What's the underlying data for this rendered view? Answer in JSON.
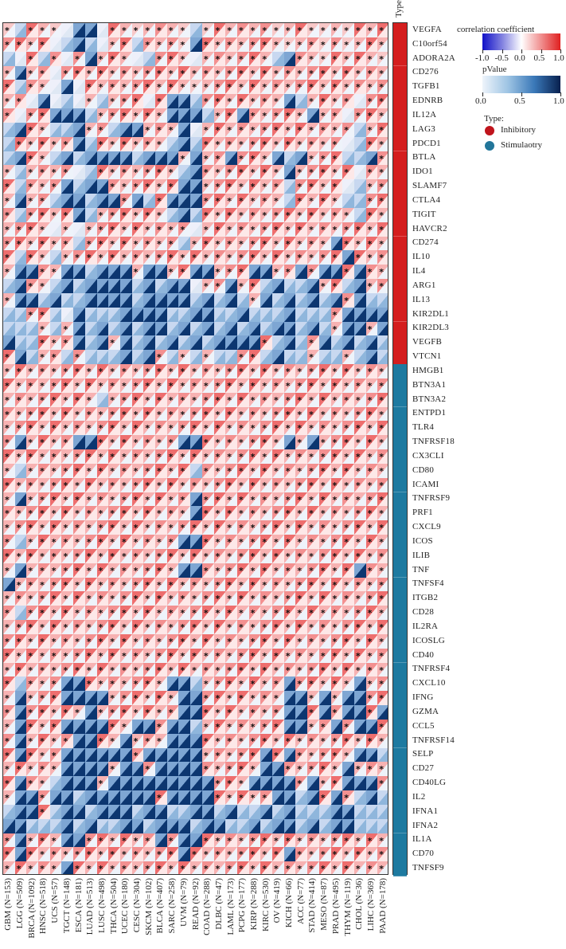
{
  "chart_data": {
    "type": "heatmap",
    "title": "",
    "description": "Correlation of immune checkpoint genes with a target across TCGA cancer types; each cell split into upper-left triangle (correlation coefficient) and lower-right triangle (pValue); asterisk marks significance",
    "columns": [
      "GBM (N=153)",
      "LGG (N=509)",
      "BRCA (N=1092)",
      "HNSC (N=518)",
      "UCS (N=57)",
      "TGCT (N=148)",
      "ESCA (N=181)",
      "LUAD (N=513)",
      "LUSC (N=498)",
      "THCA (N=504)",
      "UCEC (N=180)",
      "CESC (N=304)",
      "SKCM (N=102)",
      "BLCA (N=407)",
      "SARC (N=258)",
      "UVM (N=79)",
      "READ (N=92)",
      "COAD (N=288)",
      "DLBC (N=47)",
      "LAML (N=173)",
      "PCPG (N=177)",
      "KIRP (N=288)",
      "KIRC (N=530)",
      "OV (N=419)",
      "KICH (N=66)",
      "ACC (N=77)",
      "STAD (N=414)",
      "MESO (N=87)",
      "PRAD (N=495)",
      "THYM (N=119)",
      "CHOL (N=36)",
      "LIHC (N=369)",
      "PAAD (N=178)"
    ],
    "rows": [
      {
        "gene": "VEGFA",
        "type": "Inhibitory",
        "cells": "rbRRrwBBwRRrRRRrbrRRRRRrRRrrRrRRR"
      },
      {
        "gene": "C10orf54",
        "type": "Inhibitory",
        "cells": "RRRRwbBbwRRbRRRrBRRRRRRRrRRrRrRRR"
      },
      {
        "gene": "ADORA2A",
        "type": "Inhibitory",
        "cells": "bwRbRwRBRRRwbRRRwRRRRRRbBRRrRRRRr"
      },
      {
        "gene": "CD276",
        "type": "Inhibitory",
        "cells": "RBRRwRRRRRRRRRRRRRRRRRRRRRRRRRRRR"
      },
      {
        "gene": "TGFB1",
        "type": "Inhibitory",
        "cells": "RbRRwBwRRRRRRRRRrRRRRRRRRRRRRRRRR"
      },
      {
        "gene": "EDNRB",
        "type": "Inhibitory",
        "cells": "RRwBwbwRbRRRwRBBbRRRRRRRBbRRRRwRR"
      },
      {
        "gene": "IL12A",
        "type": "Inhibitory",
        "cells": "RwRRBBBbRRRRRRBBBbRRBRRRRRBRRwRRR"
      },
      {
        "gene": "LAG3",
        "type": "Inhibitory",
        "cells": "bBRRbbBRRbBBRRRBwRRRRRRRRRRRRRbRR"
      },
      {
        "gene": "PDCD1",
        "type": "Inhibitory",
        "cells": "bRRRRRBbRRRRRRbBbRRRRRRRRRRRRwbRR"
      },
      {
        "gene": "BTLA",
        "type": "Inhibitory",
        "cells": "bBRRbBbBBBBbBBBRBRRBRRRBbBRRRbbBR"
      },
      {
        "gene": "IDO1",
        "type": "Inhibitory",
        "cells": "RbRRRRwbRRRRRRRbBRRRRRRRBRRRRRwRR"
      },
      {
        "gene": "SLAMF7",
        "type": "Inhibitory",
        "cells": "RbRRRBbBBRRRRRRBBRRRRRRRbRRRRwbRR"
      },
      {
        "gene": "CTLA4",
        "type": "Inhibitory",
        "cells": "RBRRbBBbBBRBbRBBBRRRRRRRbRRRRbbRR"
      },
      {
        "gene": "TIGIT",
        "type": "Inhibitory",
        "cells": "RbRRRRBbRRRRRRbBbRRRRRRRRRRRRRbRR"
      },
      {
        "gene": "HAVCR2",
        "type": "Inhibitory",
        "cells": "RRRRwRwRRRRRRRRRwRRRRRRRRRRRRRRRR"
      },
      {
        "gene": "CD274",
        "type": "Inhibitory",
        "cells": "RRRRRRbRRRRRRRRbRRRRRRRRRRRRBRRRR"
      },
      {
        "gene": "IL10",
        "type": "Inhibitory",
        "cells": "RbRRbRRRRRRRRRRRRRRRRRRRRRRRRBRRR"
      },
      {
        "gene": "IL4",
        "type": "Inhibitory",
        "cells": "RBBRRBBbBBBRBBRRBBRRRBBRRBRBBRBRR"
      },
      {
        "gene": "ARG1",
        "type": "Inhibitory",
        "cells": "bBRRbBbBBBBbBbBBwRRBRRbBbbBRRbBRR"
      },
      {
        "gene": "IL13",
        "type": "Inhibitory",
        "cells": "RBBbBbbBBBBbBBBBbBbBbRBbBbBbBRBbb"
      },
      {
        "gene": "KIR2DL1",
        "type": "Inhibitory",
        "cells": "bbRRbwBbbbBBBBbbBBbbBbbbBbbbRBBBB"
      },
      {
        "gene": "KIR2DL3",
        "type": "Inhibitory",
        "cells": "bbbRbRBbBbBbBBbBbBbBbBbBBbBbRBBRB"
      },
      {
        "gene": "VEGFB",
        "type": "Inhibitory",
        "cells": "BbbRRRBbBRBbBbBbBbBBBBRbBbRBbBbBb"
      },
      {
        "gene": "VTCN1",
        "type": "Inhibitory",
        "cells": "RBbRRbRbbbBbBRbRbRbbRRbBbbRbbRbBb"
      },
      {
        "gene": "HMGB1",
        "type": "Stimulaotry",
        "cells": "RRRRRRRRRRRRRRRRRRRRRRRRRRRRRRRRR"
      },
      {
        "gene": "BTN3A1",
        "type": "Stimulaotry",
        "cells": "RRRRRRRRRRRRRRRRRRRRRRRRRRRRRRRRR"
      },
      {
        "gene": "BTN3A2",
        "type": "Stimulaotry",
        "cells": "RRRRRRRRbRRRRRRRRRRRRRRRRRRRRRRRR"
      },
      {
        "gene": "ENTPD1",
        "type": "Stimulaotry",
        "cells": "RRRRRRRRRRRRRRRRRRRRRRRRRRRRRRRRR"
      },
      {
        "gene": "TLR4",
        "type": "Stimulaotry",
        "cells": "RRRRRRRRRRRRRRRRRRRRRRRRRRRRRRRRR"
      },
      {
        "gene": "TNFRSF18",
        "type": "Stimulaotry",
        "cells": "RBRRRRBBRRRRRRRBBRRRRRRRBRBRRRRRR"
      },
      {
        "gene": "CX3CLI",
        "type": "Stimulaotry",
        "cells": "RRRRRRRRRRRRRRRRRRRRRRRRRRRRRRRRR"
      },
      {
        "gene": "CD80",
        "type": "Stimulaotry",
        "cells": "RbRRRRRRRRRRRRRRbRRRRRRRRRRRRRRRR"
      },
      {
        "gene": "ICAMI",
        "type": "Stimulaotry",
        "cells": "RRRRRRRRRRRRRRRRRRRRRRRRRRRRRRRRR"
      },
      {
        "gene": "TNFRSF9",
        "type": "Stimulaotry",
        "cells": "RBRRRRRRRRRRRRRRBRRRRRRRRRRRRRRRR"
      },
      {
        "gene": "PRF1",
        "type": "Stimulaotry",
        "cells": "RRRRRRRRRRRRRRRRBRRRRRRRRRRRRRRRR"
      },
      {
        "gene": "CXCL9",
        "type": "Stimulaotry",
        "cells": "RRRRRRRRRRRRRRRRRRRRRRRRRRRRRRRRR"
      },
      {
        "gene": "ICOS",
        "type": "Stimulaotry",
        "cells": "RbRRRRRRRRRRRRRBBRRRRRRRRRRRRRRRR"
      },
      {
        "gene": "ILIB",
        "type": "Stimulaotry",
        "cells": "RRRRRRRRRRRRRRRRRRRRRRRRRRRRRRRRR"
      },
      {
        "gene": "TNF",
        "type": "Stimulaotry",
        "cells": "RBRRRRRRRRRRRRRBBRRRRRRRRRRRRRBRR"
      },
      {
        "gene": "TNFSF4",
        "type": "Stimulaotry",
        "cells": "BRRRRRRRRRRRRRRRRRRRRRRRRRRRRRRRR"
      },
      {
        "gene": "ITGB2",
        "type": "Stimulaotry",
        "cells": "RRRRRRRRRRRRRRRRRRRRRRRRRRRRRRRRR"
      },
      {
        "gene": "CD28",
        "type": "Stimulaotry",
        "cells": "RbRRRRRRRRRRRRRRRRRRRRRRRRRRRRRRR"
      },
      {
        "gene": "IL2RA",
        "type": "Stimulaotry",
        "cells": "RRRRRRRRRRRRRRRRRRRRRRRRRRRRRRRRR"
      },
      {
        "gene": "ICOSLG",
        "type": "Stimulaotry",
        "cells": "RRRRRRRRRRRRRRRRRRRRRRRRRRRRRRRRR"
      },
      {
        "gene": "CD40",
        "type": "Stimulaotry",
        "cells": "RRRRRRRRRRRRRRRRRRRRRRRRRRRRRRRRR"
      },
      {
        "gene": "TNFRSF4",
        "type": "Stimulaotry",
        "cells": "RRRRRRRRRRRRRRRRRRRRRRRRRRRRRRRRR"
      },
      {
        "gene": "CXCL10",
        "type": "Stimulaotry",
        "cells": "RbRRRBBRRRRRRRBBbRRRRRRRBRRRRRBRR"
      },
      {
        "gene": "IFNG",
        "type": "Stimulaotry",
        "cells": "RBRRRBBBBRRRRRRBBRRRRRRRBBRBRBBRR"
      },
      {
        "gene": "GZMA",
        "type": "Stimulaotry",
        "cells": "RBRRRRRBRRRRRRRBBRRRRRRRBBRBRBBRB"
      },
      {
        "gene": "CCL5",
        "type": "Stimulaotry",
        "cells": "RBRRRBBBBRRBBRBBbRRRRRRRBBRRBRBBR"
      },
      {
        "gene": "TNFRSF14",
        "type": "Stimulaotry",
        "cells": "RBRRRRBBRRBRRRBBBRRRRRRRRRRRRRRRR"
      },
      {
        "gene": "SELP",
        "type": "Stimulaotry",
        "cells": "RBRRRBBBBBBRBBBBBRRRRRBRBRRRRRBBb"
      },
      {
        "gene": "CD27",
        "type": "Stimulaotry",
        "cells": "RRRRRBBBBRBBRBBBBRRRRRBBRRRRRBRRR"
      },
      {
        "gene": "CD40LG",
        "type": "Stimulaotry",
        "cells": "RBRRbBBBRBBBBBBBBBRRRBBBBRBRRBBBR"
      },
      {
        "gene": "IL2",
        "type": "Stimulaotry",
        "cells": "RBBRBBbBBBBBBRBBBBRRRRRBBbBRBRbBb"
      },
      {
        "gene": "IFNA1",
        "type": "Stimulaotry",
        "cells": "bBBRbBBbBBBbBBbbBBbBbbBbBbbbBBbbb"
      },
      {
        "gene": "IFNA2",
        "type": "Stimulaotry",
        "cells": "BBbbbBbBbbBBbBBBbBBbbBbBBbBbBBbbb"
      },
      {
        "gene": "IL1A",
        "type": "Stimulaotry",
        "cells": "RBRRRBBRRRRRRBRBBRRRRRRRRRRRRRRRR"
      },
      {
        "gene": "CD70",
        "type": "Stimulaotry",
        "cells": "RBRRRRRRRRRRRRRBRRRRRRRRBRRRRRRRR"
      },
      {
        "gene": "TNFSF9",
        "type": "Stimulaotry",
        "cells": "RRRRRBRRRRRRRRRRRRRRRRRRRRRRRRRRR"
      }
    ],
    "cell_code_legend": {
      "R": "positive correlation, significant (*)",
      "r": "weak positive correlation, significant (*)",
      "w": "near-zero correlation, not significant",
      "p": "weak positive, not significant",
      "b": "weak negative/low p not significant",
      "B": "high pValue (dark blue), not significant"
    },
    "legend": {
      "correlation": {
        "title": "correlation coefficient",
        "ticks": [
          "-1.0",
          "-0.5",
          "0.0",
          "0.5",
          "1.0"
        ],
        "range": [
          -1,
          1
        ],
        "low_color": "#1010c8",
        "mid_color": "#ffffff",
        "high_color": "#e02020"
      },
      "pvalue": {
        "title": "pValue",
        "ticks": [
          "0.0",
          "0.5",
          "1.0"
        ],
        "range": [
          0,
          1
        ],
        "low_color": "#eef4fb",
        "high_color": "#08204e"
      },
      "type": {
        "title": "Type:",
        "items": [
          {
            "label": "Inhibitory",
            "color": "#c0141c"
          },
          {
            "label": "Stimulaotry",
            "color": "#22769a"
          }
        ]
      }
    },
    "type_column_label": "Type"
  }
}
